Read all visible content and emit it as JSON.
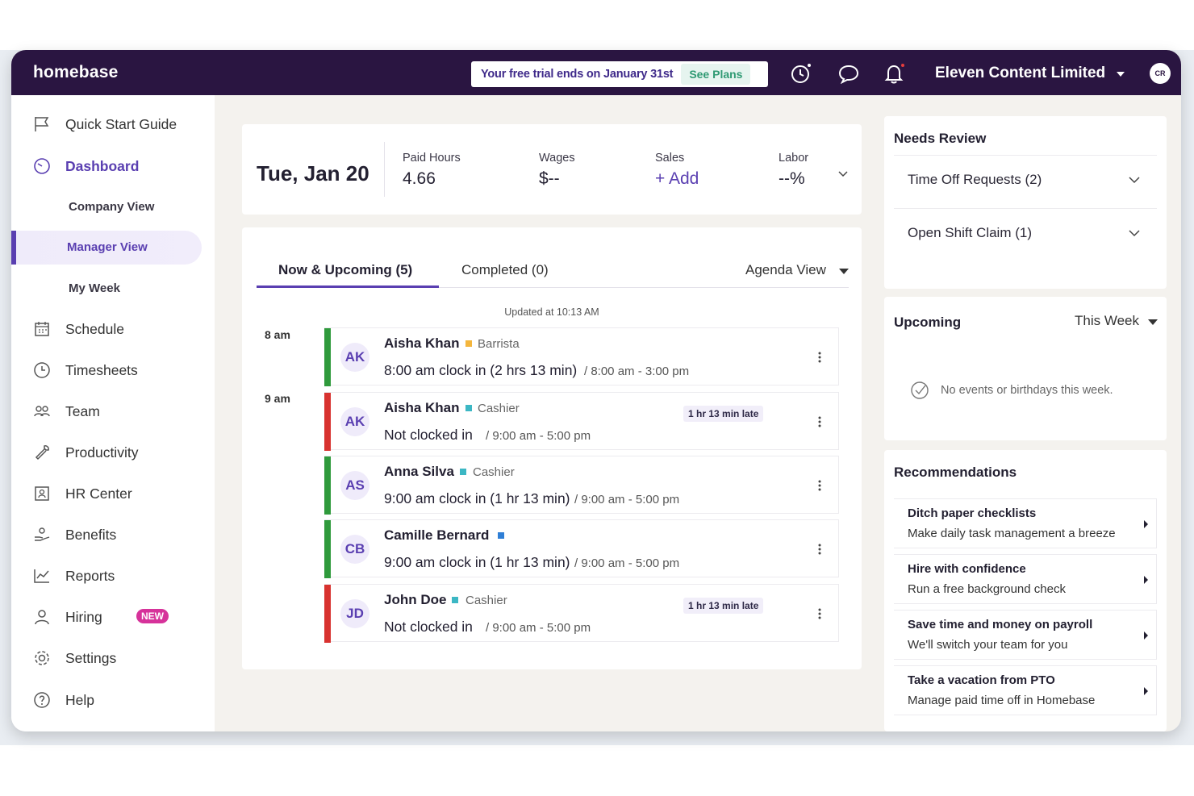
{
  "topbar": {
    "logo": "homebase",
    "trial_text": "Your free trial ends on January 31st",
    "see_plans": "See Plans",
    "company": "Eleven Content Limited",
    "avatar_initials": "CR"
  },
  "sidebar": {
    "items": [
      {
        "label": "Quick Start Guide",
        "icon": "flag-icon"
      },
      {
        "label": "Dashboard",
        "icon": "dashboard-icon"
      },
      {
        "label": "Company View"
      },
      {
        "label": "Manager View"
      },
      {
        "label": "My Week"
      },
      {
        "label": "Schedule",
        "icon": "calendar-icon"
      },
      {
        "label": "Timesheets",
        "icon": "clock-icon"
      },
      {
        "label": "Team",
        "icon": "team-icon"
      },
      {
        "label": "Productivity",
        "icon": "wrench-icon"
      },
      {
        "label": "HR Center",
        "icon": "hr-icon"
      },
      {
        "label": "Benefits",
        "icon": "benefits-icon"
      },
      {
        "label": "Reports",
        "icon": "chart-icon"
      },
      {
        "label": "Hiring",
        "icon": "person-icon",
        "badge": "NEW"
      },
      {
        "label": "Settings",
        "icon": "gear-icon"
      },
      {
        "label": "Help",
        "icon": "help-icon"
      }
    ]
  },
  "summary": {
    "date": "Tue, Jan 20",
    "paid_hours_label": "Paid Hours",
    "paid_hours_value": "4.66",
    "wages_label": "Wages",
    "wages_value": "$--",
    "sales_label": "Sales",
    "sales_value": "Add",
    "labor_label": "Labor",
    "labor_value": "--%"
  },
  "shifts": {
    "tab_now": "Now & Upcoming (5)",
    "tab_completed": "Completed (0)",
    "view_select": "Agenda View",
    "updated": "Updated at 10:13 AM",
    "hours": [
      "8 am",
      "9 am"
    ],
    "rows": [
      {
        "initials": "AK",
        "name": "Aisha Khan",
        "role": "Barrista",
        "role_color": "#f4b63d",
        "status": "8:00 am clock in (2 hrs 13 min)",
        "time": "/ 8:00 am - 3:00 pm",
        "bar_color": "#2f9a3c",
        "late": ""
      },
      {
        "initials": "AK",
        "name": "Aisha Khan",
        "role": "Cashier",
        "role_color": "#3cb7c4",
        "status": "Not clocked in",
        "time": "/ 9:00 am - 5:00 pm",
        "bar_color": "#d8322f",
        "late": "1 hr 13 min late"
      },
      {
        "initials": "AS",
        "name": "Anna Silva",
        "role": "Cashier",
        "role_color": "#3cb7c4",
        "status": "9:00 am clock in (1 hr 13 min)",
        "time": "/ 9:00 am - 5:00 pm",
        "bar_color": "#2f9a3c",
        "late": ""
      },
      {
        "initials": "CB",
        "name": "Camille Bernard",
        "role": "",
        "role_color": "#2f7fd6",
        "status": "9:00 am clock in (1 hr 13 min)",
        "time": "/ 9:00 am - 5:00 pm",
        "bar_color": "#2f9a3c",
        "late": ""
      },
      {
        "initials": "JD",
        "name": "John Doe",
        "role": "Cashier",
        "role_color": "#3cb7c4",
        "status": "Not clocked in",
        "time": "/ 9:00 am - 5:00 pm",
        "bar_color": "#d8322f",
        "late": "1 hr 13 min late"
      }
    ]
  },
  "needs_review": {
    "title": "Needs Review",
    "items": [
      "Time Off Requests (2)",
      "Open Shift Claim (1)"
    ]
  },
  "upcoming": {
    "title": "Upcoming",
    "range": "This Week",
    "empty": "No events or birthdays this week."
  },
  "recommendations": {
    "title": "Recommendations",
    "items": [
      {
        "title": "Ditch paper checklists",
        "sub": "Make daily task management a breeze"
      },
      {
        "title": "Hire with confidence",
        "sub": "Run a free background check"
      },
      {
        "title": "Save time and money on payroll",
        "sub": "We'll switch your team for you"
      },
      {
        "title": "Take a vacation from PTO",
        "sub": "Manage paid time off in Homebase"
      }
    ]
  },
  "colors": {
    "brand": "#2a1541",
    "accent": "#5a3fb1",
    "green": "#2f9a3c",
    "red": "#d8322f"
  }
}
